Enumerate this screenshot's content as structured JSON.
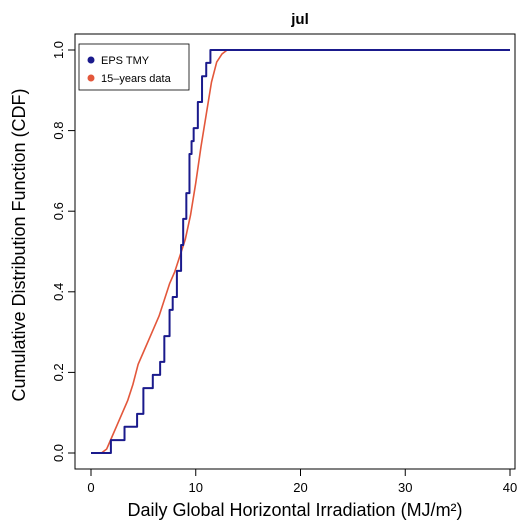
{
  "chart_data": {
    "type": "line",
    "title": "jul",
    "xlabel": "Daily Global Horizontal Irradiation (MJ/m²)",
    "ylabel": "Cumulative Distribution Function (CDF)",
    "xlim": [
      0,
      40
    ],
    "ylim": [
      0,
      1
    ],
    "x_ticks": [
      0,
      10,
      20,
      30,
      40
    ],
    "y_ticks": [
      0.0,
      0.2,
      0.4,
      0.6,
      0.8,
      1.0
    ],
    "x_tick_labels": [
      "0",
      "10",
      "20",
      "30",
      "40"
    ],
    "y_tick_labels": [
      "0.0",
      "0.2",
      "0.4",
      "0.6",
      "0.8",
      "1.0"
    ],
    "grid": false,
    "legend_position": "top-left",
    "series": [
      {
        "name": "EPS TMY",
        "color": "#1a1a8c",
        "style": "step",
        "x": [
          0,
          1.9,
          3.2,
          4.4,
          5.0,
          5.9,
          6.6,
          7.0,
          7.5,
          7.8,
          8.2,
          8.6,
          8.8,
          9.1,
          9.4,
          9.6,
          9.8,
          10.2,
          10.6,
          11.0,
          11.4,
          40
        ],
        "y": [
          0,
          0.032,
          0.065,
          0.097,
          0.161,
          0.194,
          0.226,
          0.29,
          0.355,
          0.387,
          0.452,
          0.516,
          0.581,
          0.645,
          0.742,
          0.774,
          0.806,
          0.871,
          0.935,
          0.968,
          1.0,
          1.0
        ]
      },
      {
        "name": "15–years data",
        "color": "#e3573b",
        "style": "line",
        "x": [
          0,
          1.0,
          1.5,
          2.0,
          2.5,
          3.0,
          3.5,
          4.0,
          4.5,
          5.0,
          5.5,
          6.0,
          6.5,
          7.0,
          7.5,
          8.0,
          8.5,
          9.0,
          9.5,
          10.0,
          10.5,
          11.0,
          11.5,
          12.0,
          12.5,
          13.0,
          40
        ],
        "y": [
          0,
          0.0,
          0.01,
          0.04,
          0.07,
          0.1,
          0.13,
          0.17,
          0.22,
          0.25,
          0.28,
          0.31,
          0.34,
          0.38,
          0.42,
          0.45,
          0.49,
          0.53,
          0.59,
          0.67,
          0.76,
          0.84,
          0.92,
          0.97,
          0.99,
          1.0,
          1.0
        ]
      }
    ]
  }
}
